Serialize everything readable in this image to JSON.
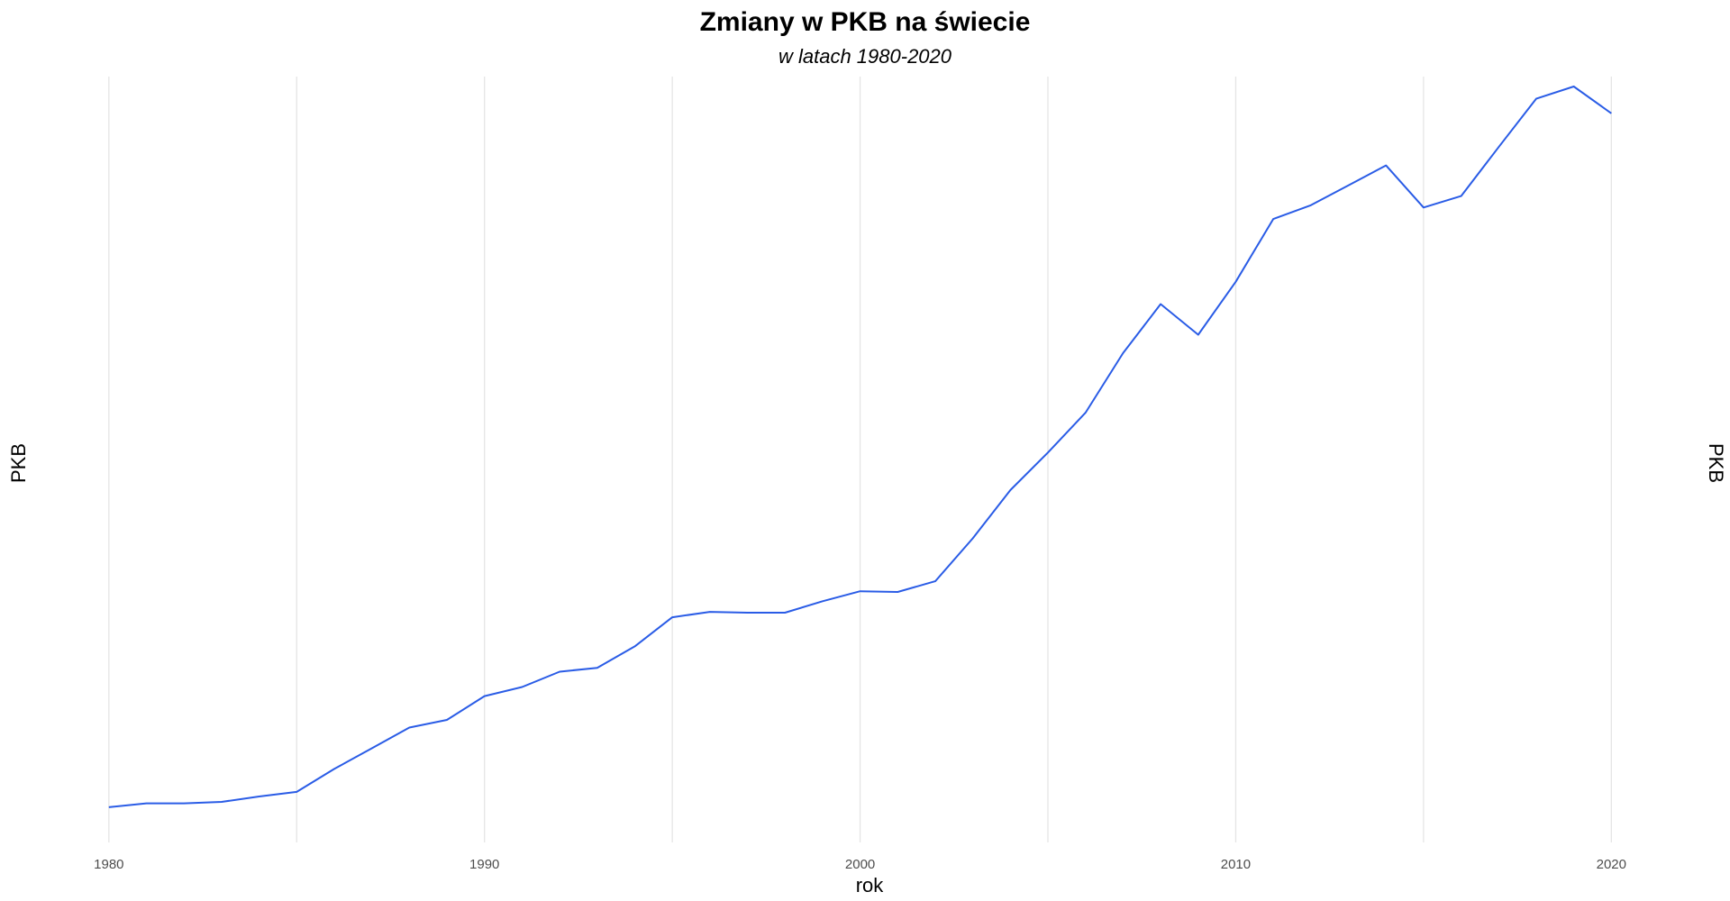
{
  "chart_data": {
    "type": "line",
    "title": "Zmiany w PKB na świecie",
    "subtitle": "w latach 1980-2020",
    "xlabel": "rok",
    "ylabel": "PKB",
    "ylabel_secondary": "PKB",
    "xlim": [
      1979.5,
      2021
    ],
    "ylim": [
      0,
      100
    ],
    "x_ticks": [
      1980,
      1990,
      2000,
      2010,
      2020
    ],
    "y_ticks_shown": false,
    "grid": "vertical major and minor lines only",
    "line_color": "#2a5ce6",
    "x": [
      1980,
      1981,
      1982,
      1983,
      1984,
      1985,
      1986,
      1987,
      1988,
      1989,
      1990,
      1991,
      1992,
      1993,
      1994,
      1995,
      1996,
      1997,
      1998,
      1999,
      2000,
      2001,
      2002,
      2003,
      2004,
      2005,
      2006,
      2007,
      2008,
      2009,
      2010,
      2011,
      2012,
      2013,
      2014,
      2015,
      2016,
      2017,
      2018,
      2019,
      2020
    ],
    "values": [
      4.6,
      5.1,
      5.1,
      5.3,
      6.0,
      6.6,
      9.6,
      12.3,
      15.0,
      16.0,
      19.1,
      20.3,
      22.3,
      22.8,
      25.6,
      29.4,
      30.1,
      30.0,
      30.0,
      31.5,
      32.8,
      32.7,
      34.1,
      39.7,
      46.0,
      50.9,
      56.1,
      63.9,
      70.3,
      66.3,
      73.2,
      81.4,
      83.2,
      85.8,
      88.4,
      82.9,
      84.4,
      90.8,
      97.1,
      98.7,
      95.2
    ]
  }
}
